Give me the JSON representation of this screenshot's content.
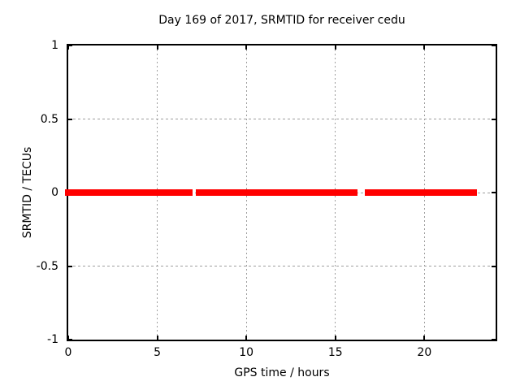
{
  "title": "Day 169 of 2017, SRMTID for receiver cedu",
  "colors": {
    "background": "#ffffff",
    "text": "#000000",
    "border": "#000000",
    "grid": "#9e9e9e",
    "data": "#ff0000"
  },
  "chart_data": {
    "type": "scatter",
    "title": "Day 169 of 2017, SRMTID for receiver cedu",
    "xlabel": "GPS time / hours",
    "ylabel": "SRMTID / TECUs",
    "xlim": [
      0,
      24
    ],
    "ylim": [
      -1,
      1
    ],
    "grid": true,
    "legend": "none",
    "marker": "plus",
    "xticks": [
      {
        "value": 0,
        "label": "0"
      },
      {
        "value": 5,
        "label": "5"
      },
      {
        "value": 10,
        "label": "10"
      },
      {
        "value": 15,
        "label": "15"
      },
      {
        "value": 20,
        "label": "20"
      }
    ],
    "yticks": [
      {
        "value": 1,
        "label": "1"
      },
      {
        "value": 0.5,
        "label": "0.5"
      },
      {
        "value": 0,
        "label": "0"
      },
      {
        "value": -0.5,
        "label": "-0.5"
      },
      {
        "value": -1,
        "label": "-1"
      }
    ],
    "series": [
      {
        "name": "SRMTID",
        "color": "#ff0000",
        "y_value": 0,
        "description": "Dense cluster of plus markers at SRMTID ~ 0 TECUs across the day, with short data gaps",
        "dense_segments_hours": [
          [
            0.0,
            6.66
          ],
          [
            7.48,
            8.71
          ],
          [
            9.22,
            9.53
          ],
          [
            9.72,
            15.92
          ],
          [
            16.97,
            22.77
          ]
        ],
        "isolated_points_hours": [
          6.8,
          7.34,
          8.85,
          9.03,
          16.06,
          16.83
        ]
      }
    ]
  }
}
